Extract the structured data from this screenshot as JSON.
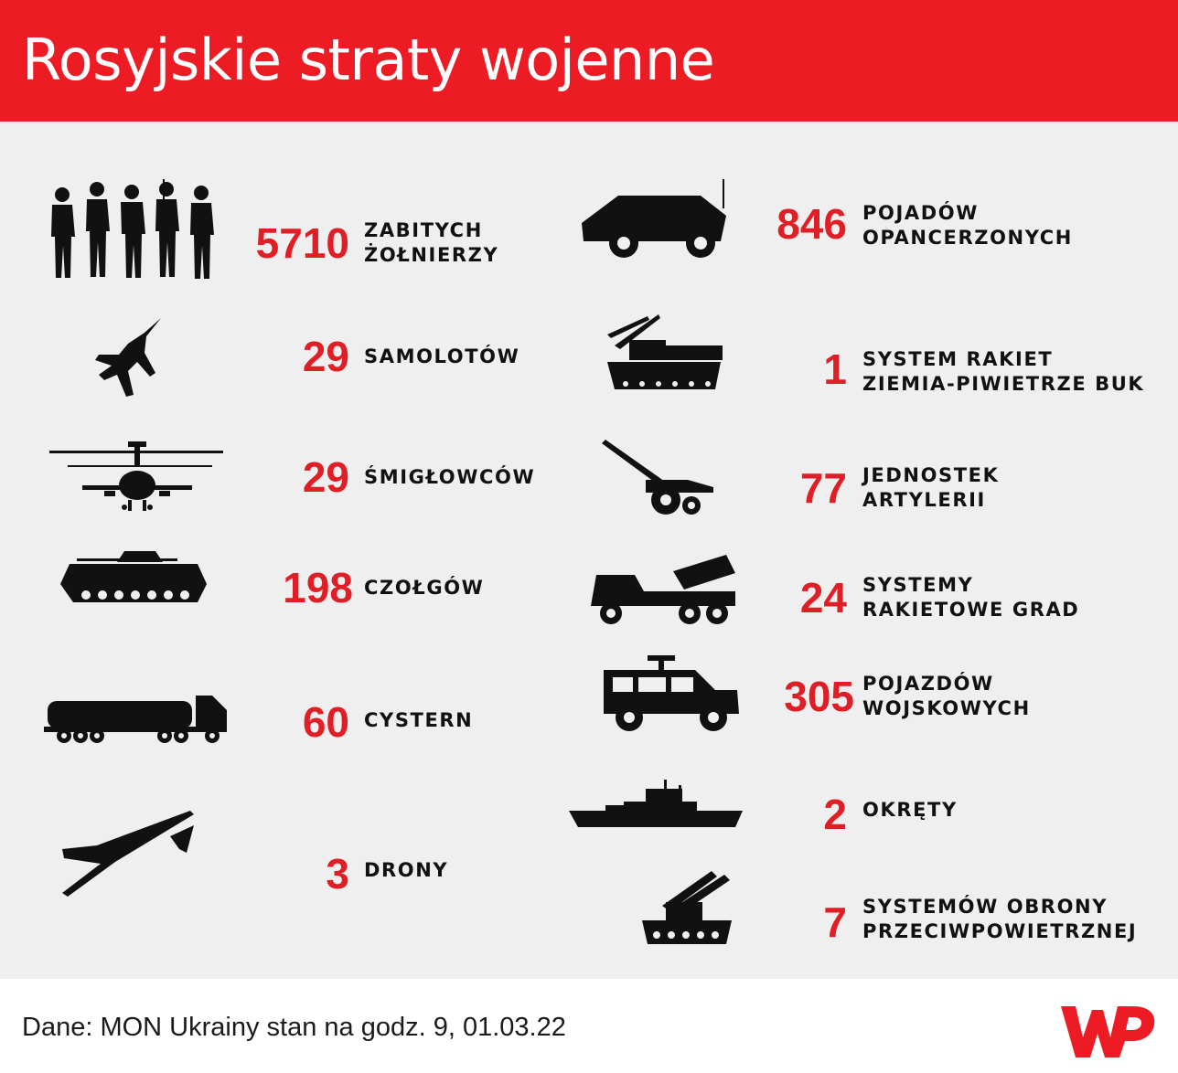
{
  "header": {
    "title": "Rosyjskie straty wojenne"
  },
  "left": [
    {
      "icon": "soldiers-icon",
      "number": "5710",
      "label": [
        "ZABITYCH",
        "ŻOŁNIERZY"
      ]
    },
    {
      "icon": "fighter-jet-icon",
      "number": "29",
      "label": [
        "SAMOLOTÓW"
      ]
    },
    {
      "icon": "helicopter-icon",
      "number": "29",
      "label": [
        "ŚMIGŁOWCÓW"
      ]
    },
    {
      "icon": "tank-icon",
      "number": "198",
      "label": [
        "CZOŁGÓW"
      ]
    },
    {
      "icon": "tanker-truck-icon",
      "number": "60",
      "label": [
        "CYSTERN"
      ]
    },
    {
      "icon": "drone-icon",
      "number": "3",
      "label": [
        "DRONY"
      ]
    }
  ],
  "right": [
    {
      "icon": "armored-vehicle-icon",
      "number": "846",
      "label": [
        "POJADÓW",
        "OPANCERZONYCH"
      ]
    },
    {
      "icon": "buk-missile-system-icon",
      "number": "1",
      "label": [
        "SYSTEM RAKIET",
        "ZIEMIA-PIWIETRZE BUK"
      ]
    },
    {
      "icon": "artillery-icon",
      "number": "77",
      "label": [
        "JEDNOSTEK",
        "ARTYLERII"
      ]
    },
    {
      "icon": "grad-rocket-launcher-icon",
      "number": "24",
      "label": [
        "SYSTEMY",
        "RAKIETOWE GRAD"
      ]
    },
    {
      "icon": "military-jeep-icon",
      "number": "305",
      "label": [
        "POJAZDÓW",
        "WOJSKOWYCH"
      ]
    },
    {
      "icon": "warship-icon",
      "number": "2",
      "label": [
        "OKRĘTY"
      ]
    },
    {
      "icon": "anti-aircraft-system-icon",
      "number": "7",
      "label": [
        "SYSTEMÓW OBRONY",
        "PRZECIWPOWIETRZNEJ"
      ]
    }
  ],
  "footer": {
    "source": "Dane: MON Ukrainy stan na godz. 9, 01.03.22",
    "logo": "WP"
  },
  "colors": {
    "accent": "#ed1c24",
    "number": "#e01e26",
    "background": "#efefef",
    "text": "#111111"
  }
}
